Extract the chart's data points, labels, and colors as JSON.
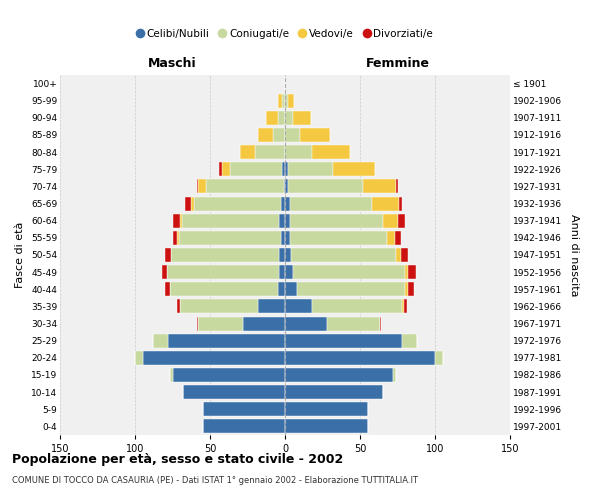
{
  "age_groups": [
    "0-4",
    "5-9",
    "10-14",
    "15-19",
    "20-24",
    "25-29",
    "30-34",
    "35-39",
    "40-44",
    "45-49",
    "50-54",
    "55-59",
    "60-64",
    "65-69",
    "70-74",
    "75-79",
    "80-84",
    "85-89",
    "90-94",
    "95-99",
    "100+"
  ],
  "birth_years": [
    "1997-2001",
    "1992-1996",
    "1987-1991",
    "1982-1986",
    "1977-1981",
    "1972-1976",
    "1967-1971",
    "1962-1966",
    "1957-1961",
    "1952-1956",
    "1947-1951",
    "1942-1946",
    "1937-1941",
    "1932-1936",
    "1927-1931",
    "1922-1926",
    "1917-1921",
    "1912-1916",
    "1907-1911",
    "1902-1906",
    "≤ 1901"
  ],
  "male": {
    "celibi": [
      55,
      55,
      68,
      75,
      95,
      78,
      28,
      18,
      5,
      4,
      4,
      3,
      4,
      3,
      1,
      2,
      0,
      0,
      0,
      0,
      0
    ],
    "coniugati": [
      0,
      0,
      0,
      2,
      5,
      10,
      30,
      52,
      72,
      75,
      72,
      68,
      65,
      58,
      52,
      35,
      20,
      8,
      5,
      2,
      0
    ],
    "vedovi": [
      0,
      0,
      0,
      0,
      0,
      0,
      0,
      0,
      0,
      0,
      0,
      1,
      1,
      2,
      5,
      5,
      10,
      10,
      8,
      3,
      0
    ],
    "divorziati": [
      0,
      0,
      0,
      0,
      0,
      0,
      1,
      2,
      3,
      3,
      4,
      3,
      5,
      4,
      1,
      2,
      0,
      0,
      0,
      0,
      0
    ]
  },
  "female": {
    "nubili": [
      55,
      55,
      65,
      72,
      100,
      78,
      28,
      18,
      8,
      5,
      4,
      3,
      3,
      3,
      2,
      2,
      0,
      0,
      0,
      0,
      0
    ],
    "coniugate": [
      0,
      0,
      0,
      2,
      5,
      10,
      35,
      60,
      72,
      75,
      70,
      65,
      62,
      55,
      50,
      30,
      18,
      10,
      5,
      2,
      0
    ],
    "vedove": [
      0,
      0,
      0,
      0,
      0,
      0,
      0,
      1,
      2,
      2,
      3,
      5,
      10,
      18,
      22,
      28,
      25,
      20,
      12,
      4,
      0
    ],
    "divorziate": [
      0,
      0,
      0,
      0,
      0,
      0,
      1,
      2,
      4,
      5,
      5,
      4,
      5,
      2,
      1,
      0,
      0,
      0,
      0,
      0,
      0
    ]
  },
  "colors": {
    "celibi": "#3a6fa8",
    "coniugati": "#c8d9a0",
    "vedovi": "#f5c842",
    "divorziati": "#cc1111"
  },
  "xlim": 150,
  "title": "Popolazione per età, sesso e stato civile - 2002",
  "subtitle": "COMUNE DI TOCCO DA CASAURIA (PE) - Dati ISTAT 1° gennaio 2002 - Elaborazione TUTTITALIA.IT",
  "ylabel_left": "Fasce di età",
  "ylabel_right": "Anni di nascita",
  "xlabel_left": "Maschi",
  "xlabel_right": "Femmine",
  "bg_color": "#f0f0f0"
}
